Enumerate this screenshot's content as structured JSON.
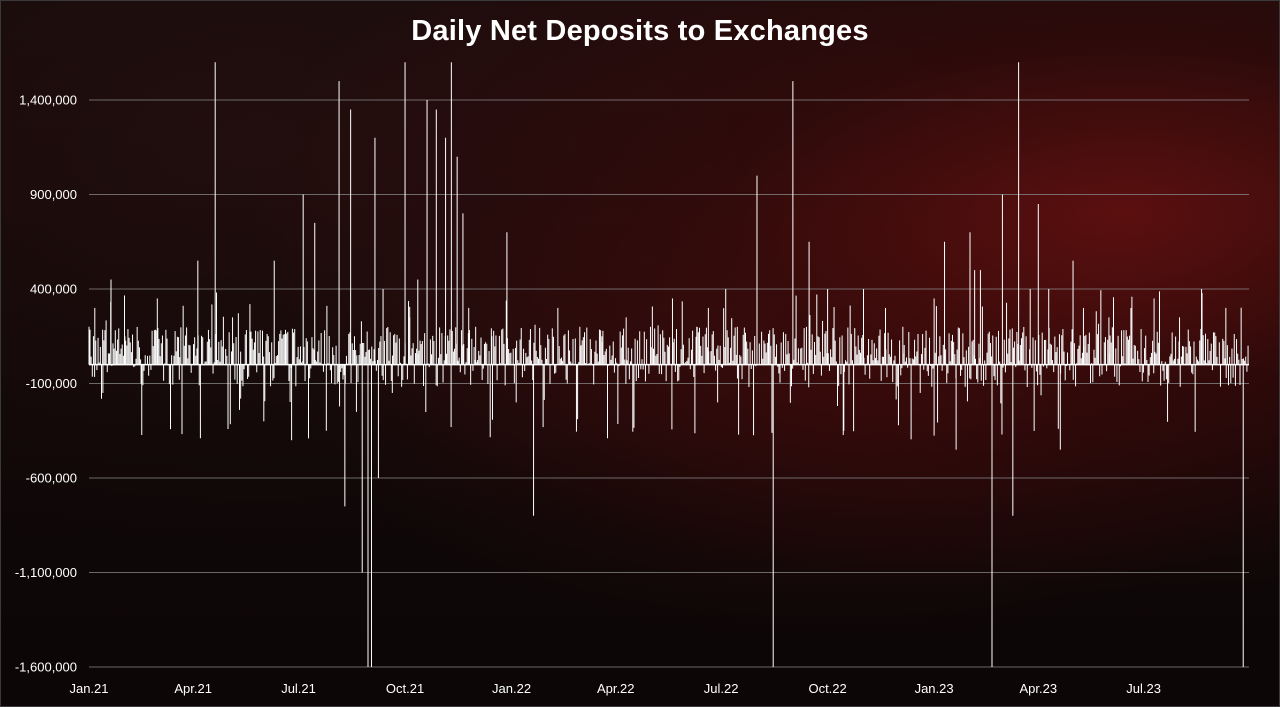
{
  "chart_data": {
    "type": "bar",
    "title": "Daily Net Deposits to Exchanges",
    "xlabel": "",
    "ylabel": "",
    "ylim": [
      -1600000,
      1400000
    ],
    "grid": true,
    "legend": "none",
    "bar_color": "#ffffff",
    "background_accent": "#8b1a1a",
    "y_ticks": [
      "1,400,000",
      "900,000",
      "400,000",
      "-100,000",
      "-600,000",
      "-1,100,000",
      "-1,600,000"
    ],
    "y_tick_values": [
      1400000,
      900000,
      400000,
      -100000,
      -600000,
      -1100000,
      -1600000
    ],
    "x_ticks": [
      "Jan.21",
      "Apr.21",
      "Jul.21",
      "Oct.21",
      "Jan.22",
      "Apr.22",
      "Jul.22",
      "Oct.22",
      "Jan.23",
      "Apr.23",
      "Jul.23"
    ],
    "x_tick_dates": [
      "2021-01-01",
      "2021-04-01",
      "2021-07-01",
      "2021-10-01",
      "2022-01-01",
      "2022-04-01",
      "2022-07-01",
      "2022-10-01",
      "2023-01-01",
      "2023-04-01",
      "2023-07-01"
    ],
    "x_range": [
      "2021-01-01",
      "2023-09-30"
    ],
    "series": [
      {
        "values_note_dates": [
          "2021-01-01",
          "2021-01-06",
          "2021-01-13",
          "2021-01-20",
          "2021-02-01",
          "2021-02-15",
          "2021-03-01",
          "2021-03-20",
          "2021-04-05",
          "2021-04-20",
          "2021-05-05",
          "2021-05-12",
          "2021-05-20",
          "2021-06-01",
          "2021-06-10",
          "2021-06-25",
          "2021-07-05",
          "2021-07-15",
          "2021-07-25",
          "2021-08-05",
          "2021-08-10",
          "2021-08-15",
          "2021-08-20",
          "2021-08-25",
          "2021-08-30",
          "2021-09-02",
          "2021-09-05",
          "2021-09-08",
          "2021-09-12",
          "2021-09-20",
          "2021-10-01",
          "2021-10-05",
          "2021-10-12",
          "2021-10-20",
          "2021-10-28",
          "2021-11-05",
          "2021-11-10",
          "2021-11-15",
          "2021-11-20",
          "2021-11-25",
          "2021-12-01",
          "2021-12-15",
          "2021-12-28",
          "2022-01-05",
          "2022-01-20",
          "2022-02-10",
          "2022-03-01",
          "2022-03-20",
          "2022-04-10",
          "2022-05-01",
          "2022-05-20",
          "2022-06-10",
          "2022-06-20",
          "2022-06-28",
          "2022-07-05",
          "2022-07-15",
          "2022-08-01",
          "2022-08-15",
          "2022-09-01",
          "2022-09-15",
          "2022-10-01",
          "2022-10-15",
          "2022-11-01",
          "2022-11-20",
          "2022-12-05",
          "2022-12-20",
          "2023-01-01",
          "2023-01-10",
          "2023-01-20",
          "2023-02-01",
          "2023-02-05",
          "2023-02-10",
          "2023-02-20",
          "2023-03-01",
          "2023-03-10",
          "2023-03-15",
          "2023-03-25",
          "2023-04-01",
          "2023-04-10",
          "2023-04-20",
          "2023-05-01",
          "2023-05-10",
          "2023-06-01",
          "2023-06-20",
          "2023-07-10",
          "2023-08-01",
          "2023-08-20",
          "2023-09-10",
          "2023-09-25"
        ],
        "values": [
          200000,
          300000,
          -150000,
          450000,
          150000,
          -100000,
          350000,
          -80000,
          550000,
          1600000,
          250000,
          -180000,
          320000,
          -300000,
          550000,
          -400000,
          900000,
          750000,
          -350000,
          1500000,
          -750000,
          1350000,
          -250000,
          -1100000,
          -1600000,
          -1600000,
          1200000,
          -600000,
          400000,
          -150000,
          1600000,
          250000,
          450000,
          1400000,
          1350000,
          1200000,
          1600000,
          1100000,
          800000,
          300000,
          200000,
          150000,
          700000,
          -200000,
          -800000,
          300000,
          200000,
          150000,
          250000,
          200000,
          350000,
          200000,
          300000,
          -200000,
          400000,
          200000,
          1000000,
          -1600000,
          1500000,
          650000,
          400000,
          -350000,
          400000,
          300000,
          200000,
          -150000,
          350000,
          650000,
          -450000,
          700000,
          500000,
          500000,
          -1600000,
          900000,
          -800000,
          1600000,
          400000,
          850000,
          400000,
          -450000,
          550000,
          300000,
          250000,
          300000,
          350000,
          250000,
          400000,
          300000,
          -1600000
        ]
      }
    ]
  }
}
